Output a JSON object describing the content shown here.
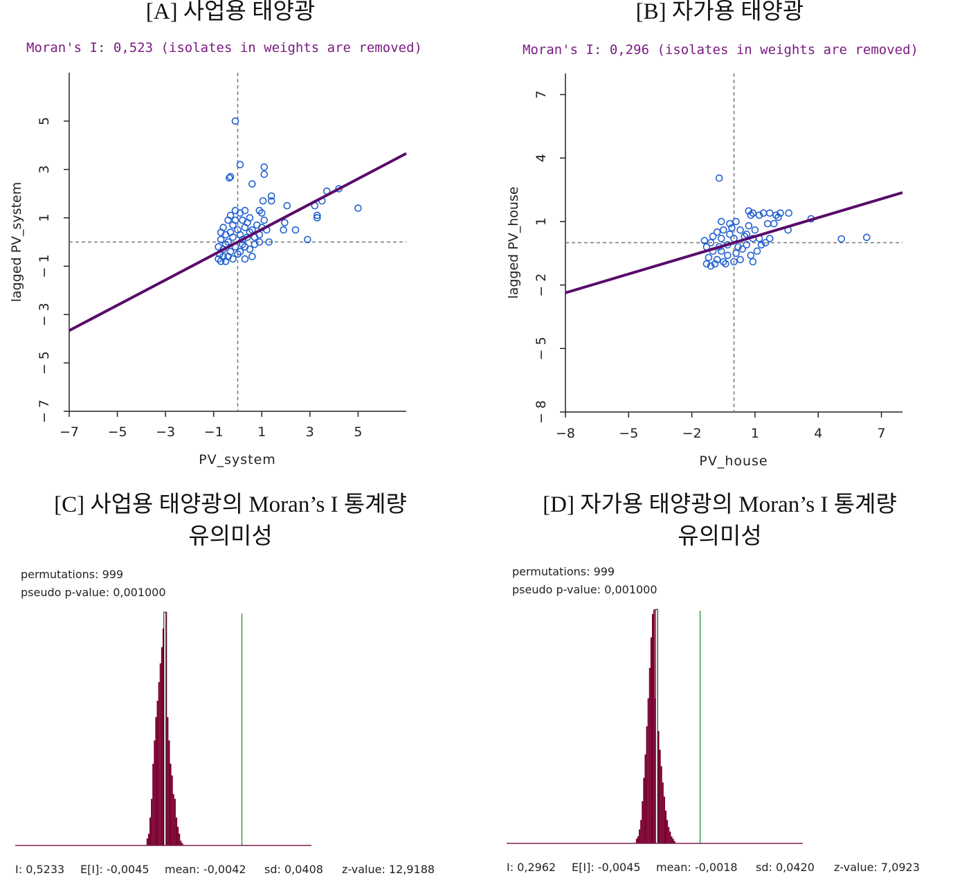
{
  "panels": {
    "a_title": "[A] 사업용 태양광",
    "b_title": "[B] 자가용 태양광",
    "c_title_line1": "[C] 사업용 태양광의 Moran’s I 통계량",
    "c_title_line2": "유의미성",
    "d_title_line1": "[D] 자가용 태양광의 Moran’s I 통계량",
    "d_title_line2": "유의미성"
  },
  "colors": {
    "points": "#2060d0",
    "regression": "#5a0a6a",
    "dashed": "#777777",
    "bars": "#7a0030",
    "observed_line": "#3a9a50",
    "subtitle": "#7a1a80"
  },
  "chart_data": [
    {
      "type": "scatter",
      "subtitle": "Moran's I: 0,523 (isolates in weights are removed)",
      "xlabel": "PV_system",
      "ylabel": "lagged PV_system",
      "xlim": [
        -7,
        7
      ],
      "ylim": [
        -7,
        7
      ],
      "xticks": [
        "-7",
        "-5",
        "-3",
        "-1",
        "1",
        "3",
        "5"
      ],
      "yticks": [
        "-7",
        "-5",
        "-3",
        "-1",
        "1",
        "3",
        "5"
      ],
      "slope": 0.523,
      "points": [
        [
          -0.1,
          5.0
        ],
        [
          0.1,
          3.2
        ],
        [
          -0.3,
          2.7
        ],
        [
          -0.35,
          2.65
        ],
        [
          0.6,
          2.4
        ],
        [
          1.1,
          3.1
        ],
        [
          1.1,
          2.8
        ],
        [
          1.05,
          1.7
        ],
        [
          1.4,
          1.9
        ],
        [
          1.4,
          1.7
        ],
        [
          2.05,
          1.5
        ],
        [
          3.7,
          2.1
        ],
        [
          4.2,
          2.2
        ],
        [
          5.0,
          1.4
        ],
        [
          3.2,
          1.5
        ],
        [
          3.3,
          1.1
        ],
        [
          3.3,
          1.0
        ],
        [
          3.5,
          1.7
        ],
        [
          2.9,
          0.1
        ],
        [
          2.4,
          0.5
        ],
        [
          1.9,
          0.5
        ],
        [
          1.95,
          0.8
        ],
        [
          1.3,
          0.0
        ],
        [
          1.0,
          1.2
        ],
        [
          1.1,
          0.9
        ],
        [
          0.9,
          1.3
        ],
        [
          -0.8,
          -0.7
        ],
        [
          -0.7,
          -0.8
        ],
        [
          -0.75,
          -0.5
        ],
        [
          -0.6,
          -0.3
        ],
        [
          -0.8,
          -0.2
        ],
        [
          -0.7,
          0.1
        ],
        [
          -0.5,
          0.3
        ],
        [
          -0.6,
          0.6
        ],
        [
          -0.4,
          0.9
        ],
        [
          -0.3,
          1.1
        ],
        [
          -0.2,
          0.7
        ],
        [
          -0.1,
          1.3
        ],
        [
          0.1,
          1.2
        ],
        [
          0.2,
          0.9
        ],
        [
          0.3,
          0.6
        ],
        [
          0.4,
          0.8
        ],
        [
          0.5,
          1.0
        ],
        [
          0.6,
          0.5
        ],
        [
          0.7,
          0.2
        ],
        [
          0.8,
          0.7
        ],
        [
          0.9,
          0.3
        ],
        [
          0.7,
          -0.1
        ],
        [
          0.5,
          -0.3
        ],
        [
          0.6,
          -0.6
        ],
        [
          0.3,
          -0.2
        ],
        [
          0.2,
          0.1
        ],
        [
          0.1,
          -0.4
        ],
        [
          0.0,
          -0.5
        ],
        [
          -0.1,
          -0.2
        ],
        [
          -0.2,
          0.2
        ],
        [
          -0.3,
          -0.4
        ],
        [
          -0.4,
          -0.6
        ],
        [
          -0.5,
          -0.1
        ],
        [
          -0.3,
          0.4
        ],
        [
          0.0,
          0.5
        ],
        [
          0.1,
          0.3
        ],
        [
          -0.6,
          -0.6
        ],
        [
          -0.5,
          -0.8
        ],
        [
          -0.2,
          -0.7
        ],
        [
          0.3,
          -0.7
        ],
        [
          0.4,
          0.2
        ],
        [
          0.9,
          0.0
        ],
        [
          1.2,
          0.5
        ],
        [
          1.0,
          0.6
        ],
        [
          -0.7,
          0.4
        ],
        [
          -0.4,
          0.0
        ],
        [
          0.2,
          -0.1
        ],
        [
          0.5,
          0.4
        ],
        [
          -0.1,
          0.9
        ],
        [
          0.3,
          1.3
        ]
      ]
    },
    {
      "type": "scatter",
      "subtitle": "Moran's I: 0,296 (isolates in weights are removed)",
      "xlabel": "PV_house",
      "ylabel": "lagged PV_house",
      "xlim": [
        -8,
        8
      ],
      "ylim": [
        -8,
        8
      ],
      "xticks": [
        "-8",
        "-5",
        "-2",
        "1",
        "4",
        "7"
      ],
      "yticks": [
        "-8",
        "-5",
        "-2",
        "1",
        "4",
        "7"
      ],
      "slope": 0.296,
      "points": [
        [
          -0.7,
          3.05
        ],
        [
          3.66,
          1.13
        ],
        [
          5.1,
          0.18
        ],
        [
          6.3,
          0.25
        ],
        [
          2.57,
          0.6
        ],
        [
          1.7,
          0.2
        ],
        [
          1.5,
          0.0
        ],
        [
          1.7,
          1.4
        ],
        [
          2.0,
          1.3
        ],
        [
          2.2,
          1.4
        ],
        [
          2.6,
          1.4
        ],
        [
          1.2,
          1.3
        ],
        [
          0.9,
          1.4
        ],
        [
          0.8,
          1.3
        ],
        [
          1.4,
          1.4
        ],
        [
          0.7,
          1.5
        ],
        [
          1.6,
          0.9
        ],
        [
          1.9,
          0.9
        ],
        [
          2.1,
          1.2
        ],
        [
          -1.3,
          -1.0
        ],
        [
          -1.1,
          -1.1
        ],
        [
          -1.2,
          -0.7
        ],
        [
          -1.0,
          -0.4
        ],
        [
          -1.3,
          -0.2
        ],
        [
          -1.4,
          0.1
        ],
        [
          -1.0,
          0.3
        ],
        [
          -0.8,
          0.5
        ],
        [
          -0.6,
          0.2
        ],
        [
          -0.6,
          1.0
        ],
        [
          -0.2,
          0.9
        ],
        [
          -0.1,
          0.7
        ],
        [
          0.1,
          1.0
        ],
        [
          0.3,
          0.6
        ],
        [
          0.5,
          0.3
        ],
        [
          0.7,
          0.8
        ],
        [
          1.0,
          0.6
        ],
        [
          0.9,
          0.2
        ],
        [
          0.6,
          -0.1
        ],
        [
          0.4,
          -0.3
        ],
        [
          0.8,
          -0.6
        ],
        [
          1.1,
          -0.4
        ],
        [
          0.3,
          -0.8
        ],
        [
          0.0,
          -0.9
        ],
        [
          -0.3,
          -0.6
        ],
        [
          -0.5,
          -0.9
        ],
        [
          -0.8,
          -0.8
        ],
        [
          -0.9,
          -1.0
        ],
        [
          -0.6,
          -0.4
        ],
        [
          -0.3,
          -0.1
        ],
        [
          0.0,
          0.2
        ],
        [
          0.2,
          -0.2
        ],
        [
          -0.5,
          0.6
        ],
        [
          -0.2,
          0.4
        ],
        [
          0.6,
          0.4
        ],
        [
          1.2,
          0.2
        ],
        [
          1.3,
          -0.1
        ],
        [
          0.9,
          -0.9
        ],
        [
          -1.1,
          0.0
        ],
        [
          -0.7,
          -0.2
        ],
        [
          -0.4,
          -1.0
        ],
        [
          0.1,
          -0.5
        ]
      ]
    },
    {
      "type": "bar",
      "permutations": "permutations: 999",
      "pvalue": "pseudo p-value: 0,001000",
      "xlim": [
        -1.03,
        1.0
      ],
      "bin_start": -0.13,
      "bin_width": 0.01,
      "counts": [
        3,
        5,
        12,
        20,
        35,
        45,
        55,
        62,
        70,
        78,
        85,
        93,
        100,
        100,
        55,
        45,
        35,
        30,
        22,
        20,
        12,
        8,
        5,
        2,
        1
      ],
      "mean": -0.0042,
      "observed": 0.5233,
      "stats": {
        "i": "I: 0,5233",
        "ei": "E[I]: -0,0045",
        "mean": "mean: -0,0042",
        "sd": "sd: 0,0408",
        "z": "z-value: 12,9188"
      }
    },
    {
      "type": "bar",
      "permutations": "permutations: 999",
      "pvalue": "pseudo p-value: 0,001000",
      "xlim": [
        -1.03,
        1.0
      ],
      "bin_start": -0.144,
      "bin_width": 0.01,
      "counts": [
        2,
        3,
        6,
        10,
        18,
        28,
        38,
        50,
        62,
        75,
        88,
        98,
        100,
        62,
        55,
        48,
        40,
        33,
        26,
        20,
        14,
        10,
        7,
        5,
        3,
        2,
        1
      ],
      "mean": -0.0018,
      "observed": 0.2962,
      "stats": {
        "i": "I: 0,2962",
        "ei": "E[I]: -0,0045",
        "mean": "mean: -0,0018",
        "sd": "sd: 0,0420",
        "z": "z-value: 7,0923"
      }
    }
  ]
}
